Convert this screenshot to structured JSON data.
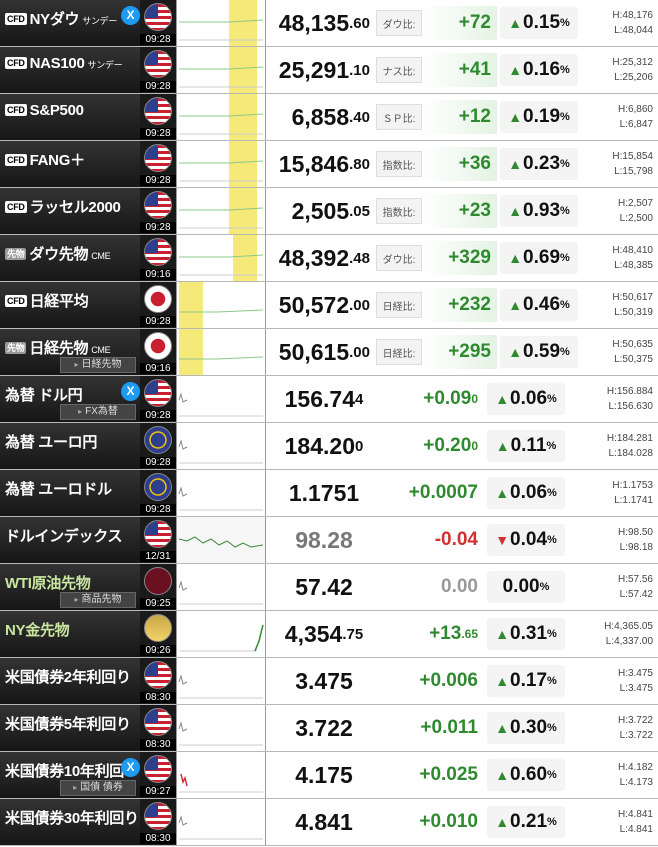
{
  "colors": {
    "up": "#2f8a2f",
    "down": "#d03030",
    "label_bg": "#222222",
    "highlight": "#f5e97a"
  },
  "rows": [
    {
      "badge": "CFD",
      "name": "NYダウ",
      "suffix": "サンデー",
      "x": true,
      "flag": "us",
      "time": "09:28",
      "price_int": "48,135",
      "price_dec": ".60",
      "diff_label": "ダウ比:",
      "change_int": "+72",
      "change_dec": "",
      "dir": "up",
      "pct": "0.15",
      "high": "H:48,176",
      "low": "L:48,044",
      "type": "cfd",
      "chart": "hl"
    },
    {
      "badge": "CFD",
      "name": "NAS100",
      "suffix": "サンデー",
      "flag": "us",
      "time": "09:28",
      "price_int": "25,291",
      "price_dec": ".10",
      "diff_label": "ナス比:",
      "change_int": "+41",
      "change_dec": "",
      "dir": "up",
      "pct": "0.16",
      "high": "H:25,312",
      "low": "L:25,206",
      "type": "cfd",
      "chart": "hl"
    },
    {
      "badge": "CFD",
      "name": "S&P500",
      "flag": "us",
      "time": "09:28",
      "price_int": "6,858",
      "price_dec": ".40",
      "diff_label": "ＳＰ比:",
      "change_int": "+12",
      "change_dec": "",
      "dir": "up",
      "pct": "0.19",
      "high": "H:6,860",
      "low": "L:6,847",
      "type": "cfd",
      "chart": "hl"
    },
    {
      "badge": "CFD",
      "name": "FANG＋",
      "flag": "us",
      "time": "09:28",
      "price_int": "15,846",
      "price_dec": ".80",
      "diff_label": "指数比:",
      "change_int": "+36",
      "change_dec": "",
      "dir": "up",
      "pct": "0.23",
      "high": "H:15,854",
      "low": "L:15,798",
      "type": "cfd",
      "chart": "hl"
    },
    {
      "badge": "CFD",
      "name": "ラッセル2000",
      "flag": "us",
      "time": "09:28",
      "price_int": "2,505",
      "price_dec": ".05",
      "diff_label": "指数比:",
      "change_int": "+23",
      "change_dec": "",
      "dir": "up",
      "pct": "0.93",
      "high": "H:2,507",
      "low": "L:2,500",
      "type": "cfd",
      "chart": "hl"
    },
    {
      "badge": "先物",
      "name": "ダウ先物",
      "suffix": "CME",
      "flag": "us",
      "time": "09:16",
      "price_int": "48,392",
      "price_dec": ".48",
      "diff_label": "ダウ比:",
      "change_int": "+329",
      "change_dec": "",
      "dir": "up",
      "pct": "0.69",
      "high": "H:48,410",
      "low": "L:48,385",
      "type": "cfd",
      "chart": "hl2"
    },
    {
      "badge": "CFD",
      "name": "日経平均",
      "flag": "jp",
      "time": "09:28",
      "price_int": "50,572",
      "price_dec": ".00",
      "diff_label": "日経比:",
      "change_int": "+232",
      "change_dec": "",
      "dir": "up",
      "pct": "0.46",
      "high": "H:50,617",
      "low": "L:50,319",
      "type": "cfd",
      "chart": "hl3"
    },
    {
      "badge": "先物",
      "name": "日経先物",
      "suffix": "CME",
      "sub": "日経先物",
      "flag": "jp",
      "time": "09:16",
      "price_int": "50,615",
      "price_dec": ".00",
      "diff_label": "日経比:",
      "change_int": "+295",
      "change_dec": "",
      "dir": "up",
      "pct": "0.59",
      "high": "H:50,635",
      "low": "L:50,375",
      "type": "cfd",
      "chart": "hl3"
    },
    {
      "name": "為替 ドル円",
      "x": true,
      "sub": "FX為替",
      "flag": "us",
      "time": "09:28",
      "price_int": "156.74",
      "price_dec": "4",
      "change_int": "+0.09",
      "change_dec": "0",
      "dir": "up",
      "pct": "0.06",
      "high": "H:156.884",
      "low": "L:156.630",
      "type": "fx",
      "chart": "flat"
    },
    {
      "name": "為替 ユーロ円",
      "flag": "eu",
      "time": "09:28",
      "price_int": "184.20",
      "price_dec": "0",
      "change_int": "+0.20",
      "change_dec": "0",
      "dir": "up",
      "pct": "0.11",
      "high": "H:184.281",
      "low": "L:184.028",
      "type": "fx",
      "chart": "flat"
    },
    {
      "name": "為替 ユーロドル",
      "flag": "eu",
      "time": "09:28",
      "price_int": "1.1751",
      "price_dec": "",
      "change_int": "+0.0007",
      "change_dec": "",
      "dir": "up",
      "pct": "0.06",
      "high": "H:1.1753",
      "low": "L:1.1741",
      "type": "fx",
      "chart": "flat"
    },
    {
      "name": "ドルインデックス",
      "flag": "us",
      "time": "12/31",
      "price_int": "98.28",
      "price_dec": "",
      "change_int": "-0.04",
      "change_dec": "",
      "dir": "down",
      "pct": "0.04",
      "high": "H:98.50",
      "low": "L:98.18",
      "type": "fx",
      "chart": "wave",
      "dim": true
    },
    {
      "name": "WTI原油先物",
      "green": true,
      "sub": "商品先物",
      "flag": "oil",
      "time": "09:25",
      "price_int": "57.42",
      "price_dec": "",
      "change_int": "0.00",
      "change_dec": "",
      "dir": "zero",
      "pct": "0.00",
      "high": "H:57.56",
      "low": "L:57.42",
      "type": "fx",
      "chart": "flat"
    },
    {
      "name": "NY金先物",
      "green": true,
      "flag": "gold",
      "time": "09:26",
      "price_int": "4,354",
      "price_dec": ".75",
      "change_int": "+13",
      "change_dec": ".65",
      "dir": "up",
      "pct": "0.31",
      "high": "H:4,365.05",
      "low": "L:4,337.00",
      "type": "fx",
      "chart": "spike"
    },
    {
      "name": "米国債券2年利回り",
      "flag": "us",
      "time": "08:30",
      "price_int": "3.475",
      "price_dec": "",
      "change_int": "+0.006",
      "change_dec": "",
      "dir": "up",
      "pct": "0.17",
      "high": "H:3.475",
      "low": "L:3.475",
      "type": "fx",
      "chart": "flat"
    },
    {
      "name": "米国債券5年利回り",
      "flag": "us",
      "time": "08:30",
      "price_int": "3.722",
      "price_dec": "",
      "change_int": "+0.011",
      "change_dec": "",
      "dir": "up",
      "pct": "0.30",
      "high": "H:3.722",
      "low": "L:3.722",
      "type": "fx",
      "chart": "flat"
    },
    {
      "name": "米国債券10年利回",
      "x": true,
      "sub": "国債 債券",
      "flag": "us",
      "time": "09:27",
      "price_int": "4.175",
      "price_dec": "",
      "change_int": "+0.025",
      "change_dec": "",
      "dir": "up",
      "pct": "0.60",
      "high": "H:4.182",
      "low": "L:4.173",
      "type": "fx",
      "chart": "red"
    },
    {
      "name": "米国債券30年利回り",
      "flag": "us",
      "time": "08:30",
      "price_int": "4.841",
      "price_dec": "",
      "change_int": "+0.010",
      "change_dec": "",
      "dir": "up",
      "pct": "0.21",
      "high": "H:4.841",
      "low": "L:4.841",
      "type": "fx",
      "chart": "flat"
    }
  ]
}
